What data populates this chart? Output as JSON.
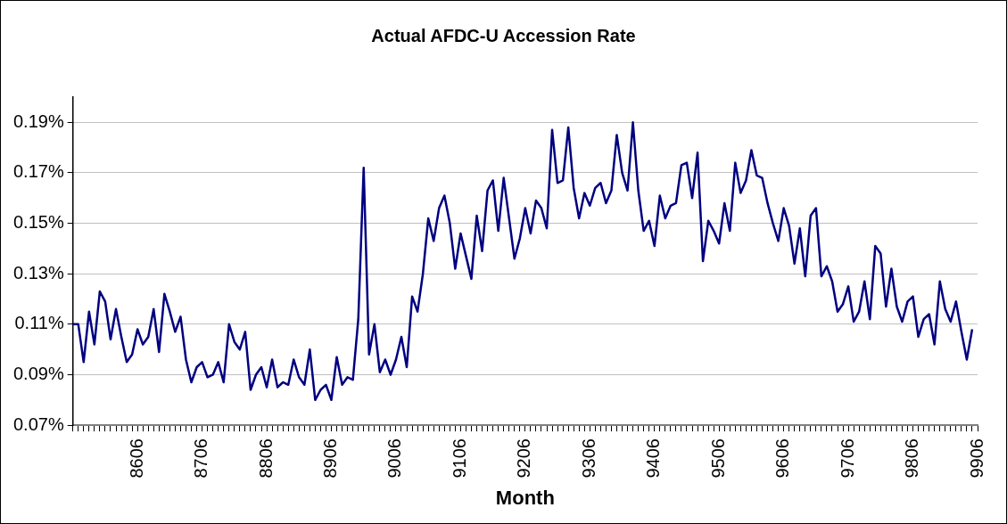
{
  "chart_data": {
    "type": "line",
    "title": "Actual AFDC-U Accession Rate",
    "xlabel": "Month",
    "categories": [
      null,
      null,
      null,
      null,
      null,
      null,
      null,
      null,
      null,
      null,
      null,
      null,
      "8606",
      null,
      null,
      null,
      null,
      null,
      null,
      null,
      null,
      null,
      null,
      null,
      "8706",
      null,
      null,
      null,
      null,
      null,
      null,
      null,
      null,
      null,
      null,
      null,
      "8806",
      null,
      null,
      null,
      null,
      null,
      null,
      null,
      null,
      null,
      null,
      null,
      "8906",
      null,
      null,
      null,
      null,
      null,
      null,
      null,
      null,
      null,
      null,
      null,
      "9006",
      null,
      null,
      null,
      null,
      null,
      null,
      null,
      null,
      null,
      null,
      null,
      "9106",
      null,
      null,
      null,
      null,
      null,
      null,
      null,
      null,
      null,
      null,
      null,
      "9206",
      null,
      null,
      null,
      null,
      null,
      null,
      null,
      null,
      null,
      null,
      null,
      "9306",
      null,
      null,
      null,
      null,
      null,
      null,
      null,
      null,
      null,
      null,
      null,
      "9406",
      null,
      null,
      null,
      null,
      null,
      null,
      null,
      null,
      null,
      null,
      null,
      "9506",
      null,
      null,
      null,
      null,
      null,
      null,
      null,
      null,
      null,
      null,
      null,
      "9606",
      null,
      null,
      null,
      null,
      null,
      null,
      null,
      null,
      null,
      null,
      null,
      "9706",
      null,
      null,
      null,
      null,
      null,
      null,
      null,
      null,
      null,
      null,
      null,
      "9806",
      null,
      null,
      null,
      null,
      null,
      null,
      null,
      null,
      null,
      null,
      null,
      "9906"
    ],
    "series": [
      {
        "color": "#000080",
        "values": [
          0.11,
          0.11,
          0.095,
          0.115,
          0.102,
          0.123,
          0.119,
          0.104,
          0.116,
          0.105,
          0.095,
          0.098,
          0.108,
          0.102,
          0.105,
          0.116,
          0.099,
          0.122,
          0.115,
          0.107,
          0.113,
          0.096,
          0.087,
          0.093,
          0.095,
          0.089,
          0.09,
          0.095,
          0.087,
          0.11,
          0.103,
          0.1,
          0.107,
          0.084,
          0.09,
          0.093,
          0.085,
          0.096,
          0.085,
          0.087,
          0.086,
          0.096,
          0.089,
          0.086,
          0.1,
          0.08,
          0.084,
          0.086,
          0.08,
          0.097,
          0.086,
          0.089,
          0.088,
          0.112,
          0.172,
          0.098,
          0.11,
          0.091,
          0.096,
          0.09,
          0.096,
          0.105,
          0.093,
          0.121,
          0.115,
          0.13,
          0.152,
          0.143,
          0.156,
          0.161,
          0.15,
          0.132,
          0.146,
          0.137,
          0.128,
          0.153,
          0.139,
          0.163,
          0.167,
          0.147,
          0.168,
          0.152,
          0.136,
          0.144,
          0.156,
          0.146,
          0.159,
          0.156,
          0.148,
          0.187,
          0.166,
          0.167,
          0.188,
          0.164,
          0.152,
          0.162,
          0.157,
          0.164,
          0.166,
          0.158,
          0.163,
          0.185,
          0.17,
          0.163,
          0.19,
          0.163,
          0.147,
          0.151,
          0.141,
          0.161,
          0.152,
          0.157,
          0.158,
          0.173,
          0.174,
          0.16,
          0.178,
          0.135,
          0.151,
          0.147,
          0.142,
          0.158,
          0.147,
          0.174,
          0.162,
          0.167,
          0.179,
          0.169,
          0.168,
          0.158,
          0.15,
          0.143,
          0.156,
          0.149,
          0.134,
          0.148,
          0.129,
          0.153,
          0.156,
          0.129,
          0.133,
          0.127,
          0.115,
          0.118,
          0.125,
          0.111,
          0.115,
          0.127,
          0.112,
          0.141,
          0.138,
          0.117,
          0.132,
          0.117,
          0.111,
          0.119,
          0.121,
          0.105,
          0.112,
          0.114,
          0.102,
          0.127,
          0.116,
          0.111,
          0.119,
          0.107,
          0.096,
          0.108,
          null
        ]
      }
    ],
    "ylim": [
      0.07,
      0.2
    ],
    "yticks": [
      {
        "value": 0.07,
        "label": "0.07%"
      },
      {
        "value": 0.09,
        "label": "0.09%"
      },
      {
        "value": 0.11,
        "label": "0.11%"
      },
      {
        "value": 0.13,
        "label": "0.13%"
      },
      {
        "value": 0.15,
        "label": "0.15%"
      },
      {
        "value": 0.17,
        "label": "0.17%"
      },
      {
        "value": 0.19,
        "label": "0.19%"
      }
    ],
    "grid": "y",
    "legend": false,
    "marker": "none",
    "line_style": "solid"
  }
}
